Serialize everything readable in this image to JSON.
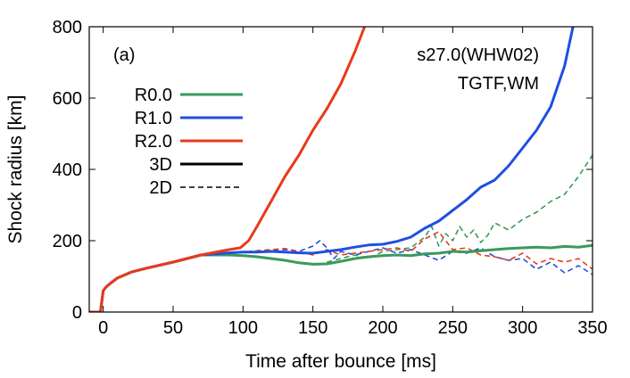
{
  "chart_data": {
    "type": "line",
    "panel_label": "(a)",
    "annotation_lines": [
      "s27.0(WHW02)",
      "TGTF,WM"
    ],
    "xlabel": "Time after bounce [ms]",
    "ylabel": "Shock radius [km]",
    "xlim": [
      -10,
      350
    ],
    "ylim": [
      0,
      800
    ],
    "xticks": [
      0,
      50,
      100,
      150,
      200,
      250,
      300,
      350
    ],
    "yticks": [
      0,
      200,
      400,
      600,
      800
    ],
    "grid": false,
    "legend_placement": "upper-left",
    "series": [
      {
        "name": "R0.0",
        "dim": "3D",
        "color": "#3a9a5a",
        "style": "solid",
        "x": [
          -10,
          -2,
          0,
          2,
          5,
          10,
          20,
          30,
          50,
          70,
          90,
          100,
          110,
          120,
          130,
          140,
          150,
          160,
          170,
          180,
          190,
          200,
          210,
          220,
          230,
          240,
          250,
          260,
          270,
          280,
          290,
          300,
          310,
          320,
          330,
          340,
          350
        ],
        "y": [
          0,
          0,
          60,
          70,
          80,
          95,
          112,
          122,
          140,
          160,
          160,
          158,
          155,
          150,
          145,
          138,
          134,
          135,
          142,
          150,
          155,
          158,
          160,
          158,
          163,
          165,
          170,
          168,
          172,
          175,
          178,
          180,
          182,
          180,
          184,
          182,
          187
        ]
      },
      {
        "name": "R1.0",
        "dim": "3D",
        "color": "#1f4fe0",
        "style": "solid",
        "x": [
          -10,
          -2,
          0,
          2,
          5,
          10,
          20,
          30,
          50,
          70,
          90,
          100,
          110,
          120,
          130,
          140,
          150,
          160,
          170,
          180,
          190,
          200,
          210,
          220,
          230,
          240,
          250,
          260,
          270,
          280,
          290,
          300,
          310,
          320,
          330,
          336
        ],
        "y": [
          0,
          0,
          60,
          70,
          80,
          95,
          112,
          122,
          140,
          160,
          166,
          168,
          168,
          170,
          168,
          166,
          165,
          170,
          175,
          182,
          188,
          190,
          198,
          210,
          235,
          255,
          285,
          315,
          350,
          370,
          410,
          460,
          510,
          575,
          690,
          800
        ]
      },
      {
        "name": "R2.0",
        "dim": "3D",
        "color": "#e83a1a",
        "style": "solid",
        "x": [
          -10,
          -2,
          0,
          2,
          5,
          10,
          20,
          30,
          50,
          70,
          90,
          98,
          104,
          110,
          120,
          130,
          140,
          150,
          160,
          170,
          180,
          187
        ],
        "y": [
          0,
          0,
          60,
          70,
          80,
          95,
          112,
          122,
          140,
          160,
          175,
          180,
          200,
          240,
          310,
          380,
          440,
          510,
          570,
          640,
          730,
          800
        ]
      },
      {
        "name": "R0.0",
        "dim": "2D",
        "color": "#3a9a5a",
        "style": "dashed",
        "x": [
          160,
          170,
          180,
          190,
          200,
          210,
          220,
          230,
          235,
          240,
          245,
          250,
          255,
          260,
          265,
          270,
          275,
          280,
          290,
          300,
          310,
          320,
          330,
          340,
          350
        ],
        "y": [
          140,
          150,
          160,
          150,
          170,
          175,
          180,
          210,
          240,
          185,
          220,
          200,
          240,
          210,
          230,
          195,
          215,
          250,
          230,
          260,
          280,
          310,
          330,
          380,
          440
        ]
      },
      {
        "name": "R1.0",
        "dim": "2D",
        "color": "#1f4fe0",
        "style": "dashed",
        "x": [
          0,
          5,
          10,
          20,
          30,
          50,
          70,
          90,
          100,
          110,
          120,
          130,
          140,
          150,
          155,
          160,
          165,
          170,
          180,
          190,
          200,
          210,
          220,
          230,
          240,
          250,
          260,
          270,
          280,
          290,
          300,
          310,
          320,
          330,
          340,
          350
        ],
        "y": [
          60,
          80,
          95,
          112,
          122,
          140,
          160,
          165,
          168,
          170,
          172,
          175,
          170,
          185,
          200,
          180,
          150,
          170,
          160,
          170,
          180,
          165,
          175,
          160,
          145,
          170,
          165,
          180,
          155,
          145,
          150,
          120,
          140,
          110,
          130,
          105
        ]
      },
      {
        "name": "R2.0",
        "dim": "2D",
        "color": "#e83a1a",
        "style": "dashed",
        "x": [
          0,
          5,
          10,
          20,
          30,
          50,
          70,
          90,
          100,
          110,
          120,
          130,
          140,
          150,
          160,
          170,
          180,
          190,
          200,
          210,
          220,
          230,
          240,
          250,
          260,
          270,
          280,
          290,
          300,
          310,
          320,
          330,
          340,
          350
        ],
        "y": [
          60,
          80,
          95,
          112,
          122,
          140,
          160,
          165,
          168,
          172,
          175,
          178,
          170,
          160,
          175,
          160,
          165,
          170,
          175,
          180,
          170,
          205,
          225,
          175,
          180,
          160,
          155,
          145,
          165,
          135,
          150,
          140,
          150,
          120
        ]
      }
    ],
    "legend": [
      {
        "label": "R0.0",
        "color": "#3a9a5a",
        "style": "solid"
      },
      {
        "label": "R1.0",
        "color": "#1f4fe0",
        "style": "solid"
      },
      {
        "label": "R2.0",
        "color": "#e83a1a",
        "style": "solid"
      },
      {
        "label": "3D",
        "color": "#000000",
        "style": "solid"
      },
      {
        "label": "2D",
        "color": "#000000",
        "style": "dashed"
      }
    ]
  }
}
